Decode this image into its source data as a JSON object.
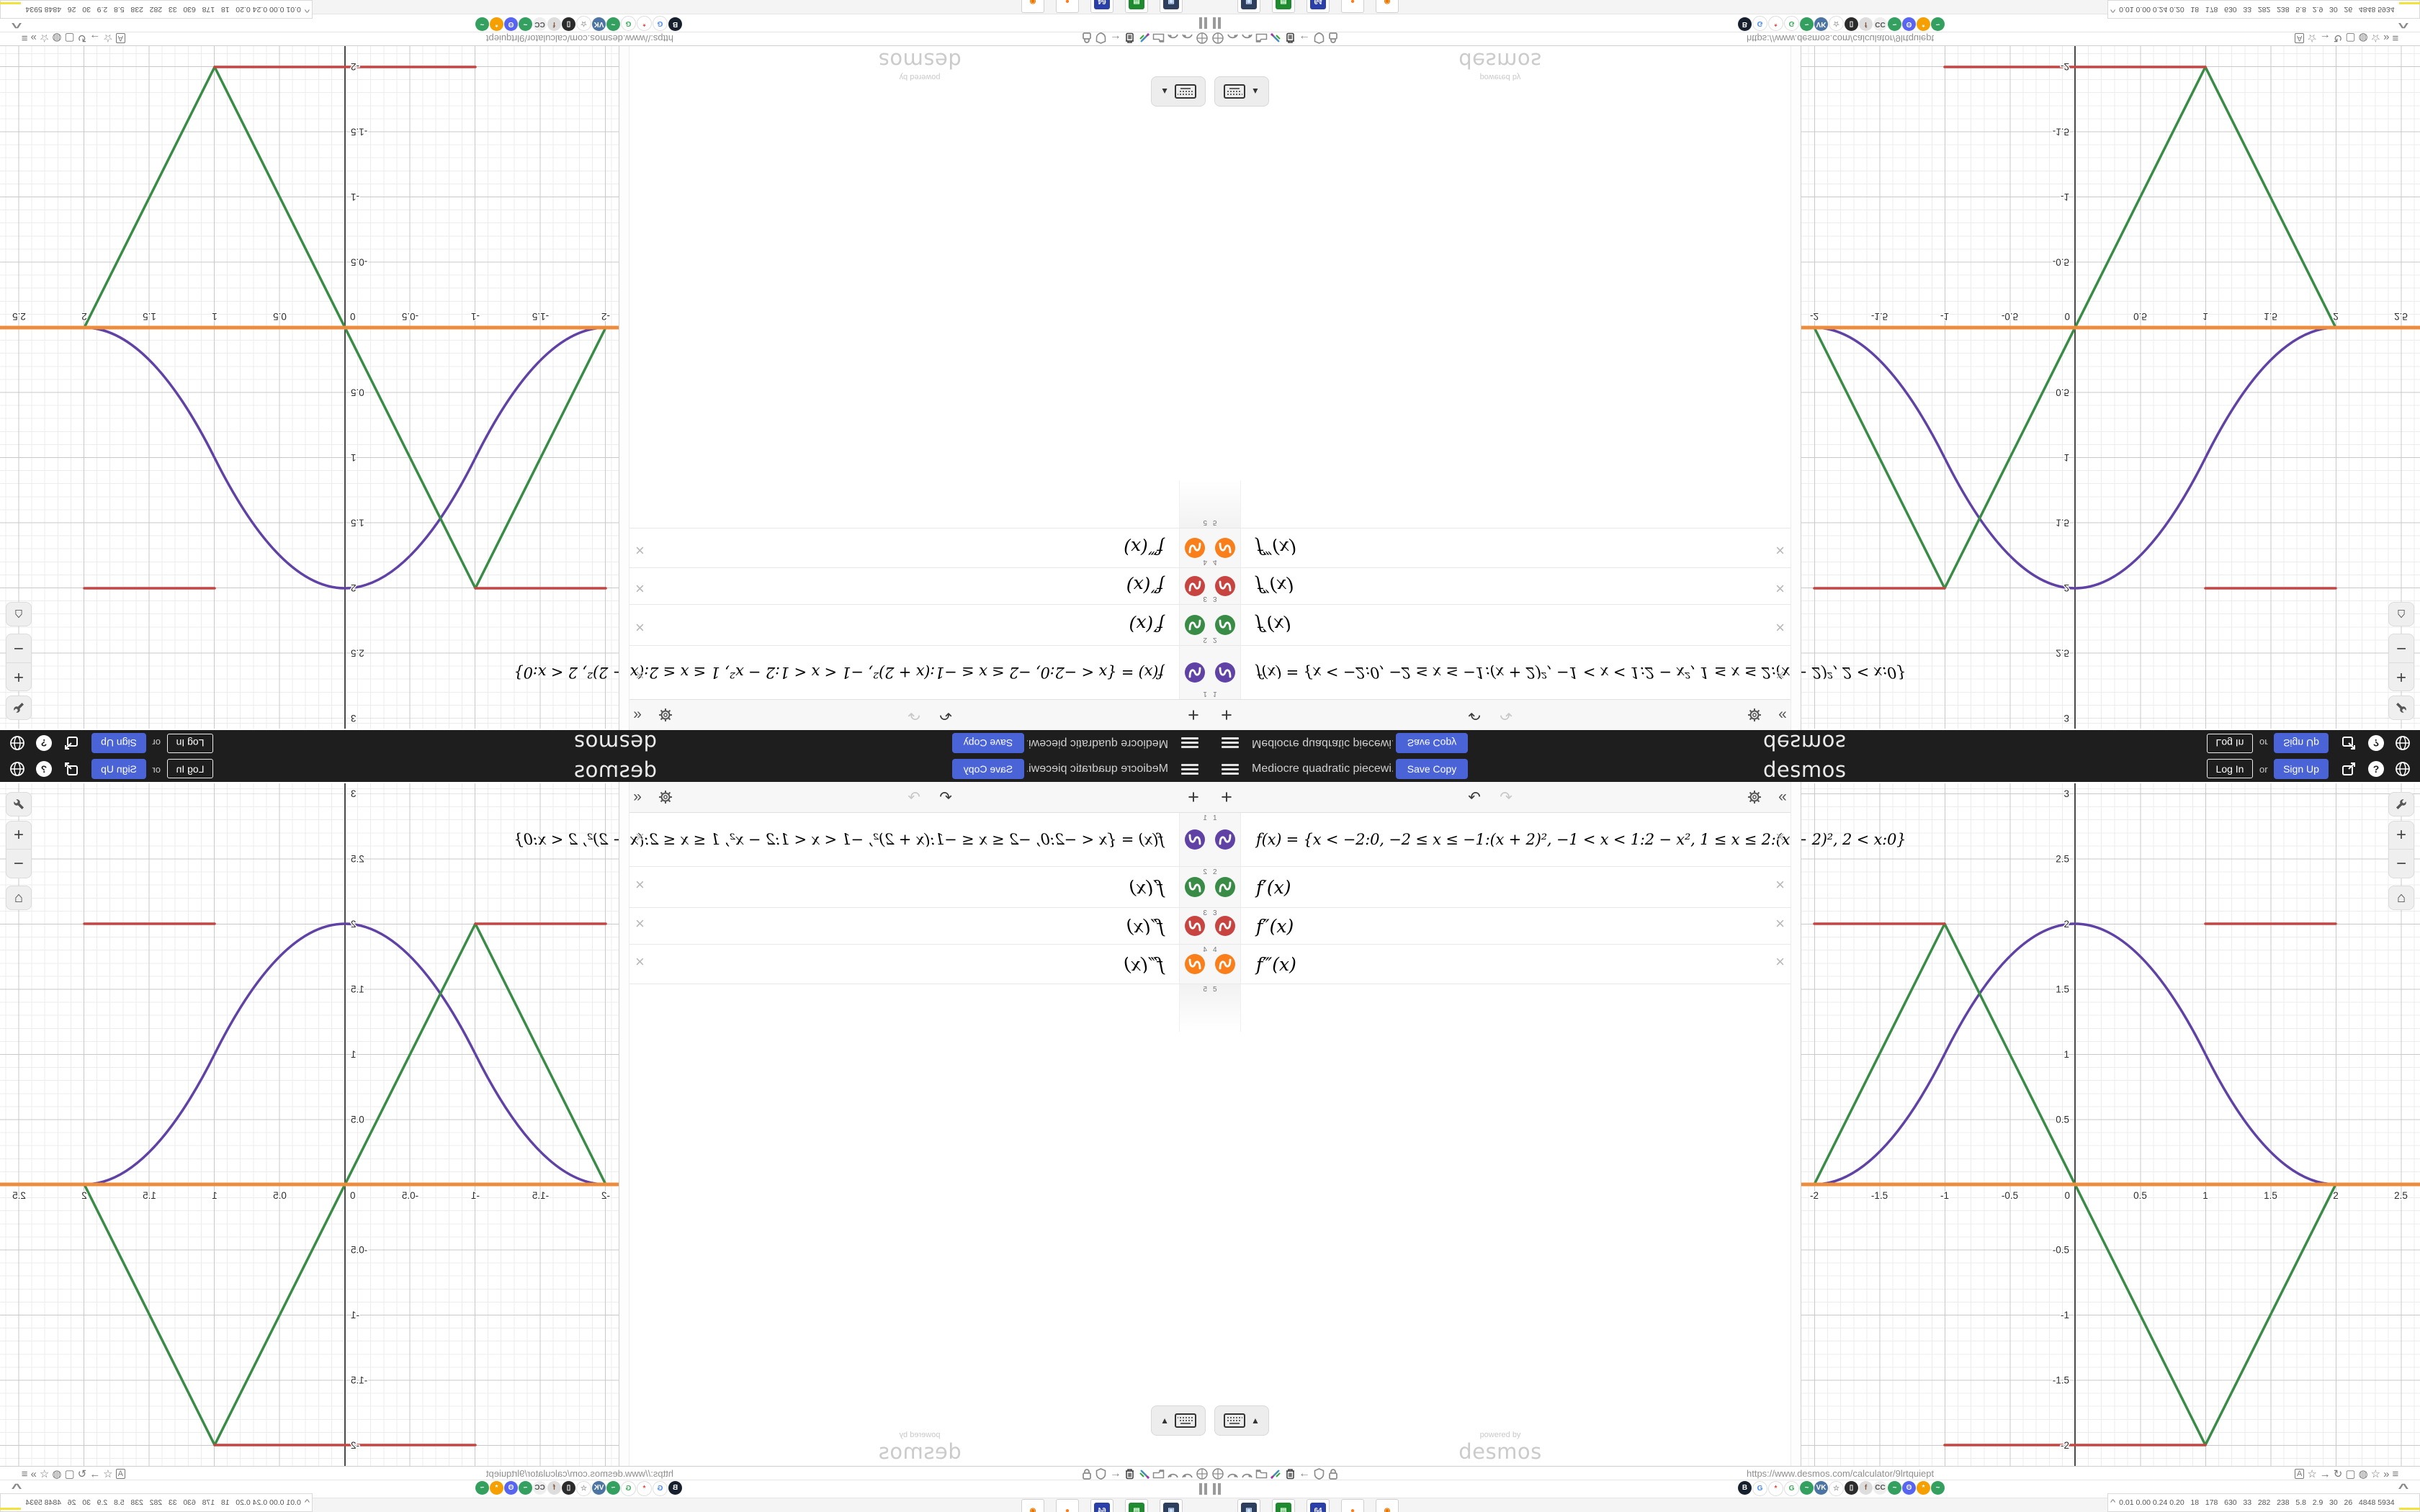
{
  "topbar": {
    "title": "Mediocre quadratic piecewi...",
    "save_copy": "Save Copy",
    "wordmark": "desmos",
    "log_in": "Log In",
    "or": "or",
    "sign_up": "Sign Up",
    "help": "?"
  },
  "icons": {
    "add": "+",
    "undo": "↶",
    "redo": "↷",
    "collapse": "«",
    "close": "×",
    "caret_up": "▲",
    "zoom_in": "+",
    "zoom_out": "−",
    "home": "⌂",
    "chevron_up": "^",
    "arrow_left": "←",
    "status_icons": [
      "globe",
      "meter",
      "meter",
      "folder",
      "brush",
      "trash",
      "arrow-left",
      "shield",
      "lock"
    ],
    "browser_icons": [
      "A",
      "☆",
      "→",
      "↻",
      "▢",
      "◍",
      "☆",
      "»",
      "≡"
    ]
  },
  "expressions": {
    "rows": [
      {
        "index": "1",
        "color": "#6042a6",
        "latex": "f(x) = {x < −2:0, −2 ≤ x ≤ −1:(x + 2)², −1 < x < 1:2 − x², 1 ≤ x ≤ 2:(x − 2)², 2 < x:0}"
      },
      {
        "index": "2",
        "color": "#388c46",
        "latex": "f′(x)"
      },
      {
        "index": "3",
        "color": "#c74440",
        "latex": "f″(x)"
      },
      {
        "index": "4",
        "color": "#fa7e19",
        "latex": "f‴(x)"
      }
    ],
    "next_index": "5"
  },
  "watermark": {
    "line1": "powered by",
    "line2": "desmos"
  },
  "statusbar": {
    "url": "https://www.desmos.com/calculator/9lrtquiept"
  },
  "taskbar": {
    "stats": "0.01 0.00 0.24 0.20   18   178   630   33   282   238   5.8   2.9   30   26   4848 5934",
    "favicons": [
      {
        "bg": "#16202e",
        "fg": "#ffffff",
        "t": "B"
      },
      {
        "bg": "#ffffff",
        "fg": "#4285f4",
        "t": "G"
      },
      {
        "bg": "#ffffff",
        "fg": "#e8453c",
        "t": "*"
      },
      {
        "bg": "#ffffff",
        "fg": "#34a853",
        "t": "G"
      },
      {
        "bg": "#34a060",
        "fg": "#ffffff",
        "t": "~"
      },
      {
        "bg": "#4c75a3",
        "fg": "#ffffff",
        "t": "VK"
      },
      {
        "bg": "#ffffff",
        "fg": "#9a9a9a",
        "t": "☆"
      },
      {
        "bg": "#2b2b2b",
        "fg": "#ffffff",
        "t": "▯"
      },
      {
        "bg": "#dddddd",
        "fg": "#8a5a3a",
        "t": "f"
      },
      {
        "bg": "#eeeeee",
        "fg": "#555555",
        "t": "CC"
      },
      {
        "bg": "#34a060",
        "fg": "#ffffff",
        "t": "~"
      },
      {
        "bg": "#5865f2",
        "fg": "#ffffff",
        "t": "ʘ"
      },
      {
        "bg": "#f59f00",
        "fg": "#ffffff",
        "t": "*"
      },
      {
        "bg": "#34a060",
        "fg": "#ffffff",
        "t": "~"
      }
    ],
    "app_icons": [
      {
        "bg": "#2e3f5e",
        "fg": "#cfe4ff",
        "t": "▣"
      },
      {
        "bg": "#1f8a2f",
        "fg": "#d9ffd9",
        "t": "▤"
      },
      {
        "bg": "#2b3fa8",
        "fg": "#ffffff",
        "t": "64"
      },
      {
        "bg": "#ffffff",
        "fg": "#ff7b1a",
        "t": "●"
      },
      {
        "bg": "#ffffff",
        "fg": "#eb7700",
        "t": "◉"
      }
    ],
    "sparks": [
      {
        "c": "#f2e33c",
        "w": 34,
        "h": 3
      },
      {
        "c": "#7a2fb8",
        "w": 16,
        "h": 16
      },
      {
        "c": "#8f8f24",
        "w": 20,
        "h": 10
      },
      {
        "c": "#a05a1e",
        "w": 22,
        "h": 9
      },
      {
        "c": "#1f5fc4",
        "w": 26,
        "h": 13
      },
      {
        "c": "#a05a1e",
        "w": 28,
        "h": 11
      },
      {
        "c": "#3bc43b",
        "w": 12,
        "h": 3
      },
      {
        "c": "#c03a2e",
        "w": 16,
        "h": 7
      }
    ]
  },
  "chart_data": {
    "type": "line",
    "title": "",
    "xlabel": "",
    "ylabel": "",
    "x_range": [
      -2.1,
      2.65
    ],
    "y_range": [
      -2.16,
      3.08
    ],
    "grid": {
      "minor_step": 0.1,
      "major_step": 0.5,
      "grid_on": true
    },
    "x_ticks": [
      -2,
      -1.5,
      -1,
      -0.5,
      0,
      0.5,
      1,
      1.5,
      2,
      2.5
    ],
    "y_ticks": [
      3,
      2.5,
      2,
      1.5,
      1,
      0.5,
      -0.5,
      -1,
      -1.5,
      -2
    ],
    "legend_position": "none",
    "series": [
      {
        "name": "f(x)",
        "color": "#6042a6",
        "width": 3.5,
        "path": [
          [
            "M",
            -2.1,
            0
          ],
          [
            "L",
            -2,
            0
          ],
          [
            "Q",
            -1.5,
            0,
            -1,
            1
          ],
          [
            "Q",
            0,
            3,
            1,
            1
          ],
          [
            "Q",
            1.5,
            0,
            2,
            0
          ],
          [
            "L",
            2.65,
            0
          ]
        ]
      },
      {
        "name": "f'(x)",
        "color": "#388c46",
        "width": 3.5,
        "path": [
          [
            "M",
            -2.1,
            0
          ],
          [
            "L",
            -2,
            0
          ],
          [
            "L",
            -1,
            2
          ],
          [
            "L",
            1,
            -2
          ],
          [
            "L",
            2,
            0
          ],
          [
            "L",
            2.65,
            0
          ]
        ]
      },
      {
        "name": "f''(x)",
        "color": "#c74440",
        "width": 3.5,
        "path": [
          [
            "M",
            -2.1,
            0
          ],
          [
            "L",
            -2,
            0
          ],
          [
            "M",
            -2,
            2
          ],
          [
            "L",
            -1,
            2
          ],
          [
            "M",
            -1,
            -2
          ],
          [
            "L",
            1,
            -2
          ],
          [
            "M",
            1,
            2
          ],
          [
            "L",
            2,
            2
          ],
          [
            "M",
            2,
            0
          ],
          [
            "L",
            2.65,
            0
          ]
        ]
      },
      {
        "name": "f'''(x)",
        "color": "#ec8c3c",
        "width": 5,
        "path": [
          [
            "M",
            -2.1,
            0
          ],
          [
            "L",
            2.65,
            0
          ]
        ]
      }
    ]
  }
}
